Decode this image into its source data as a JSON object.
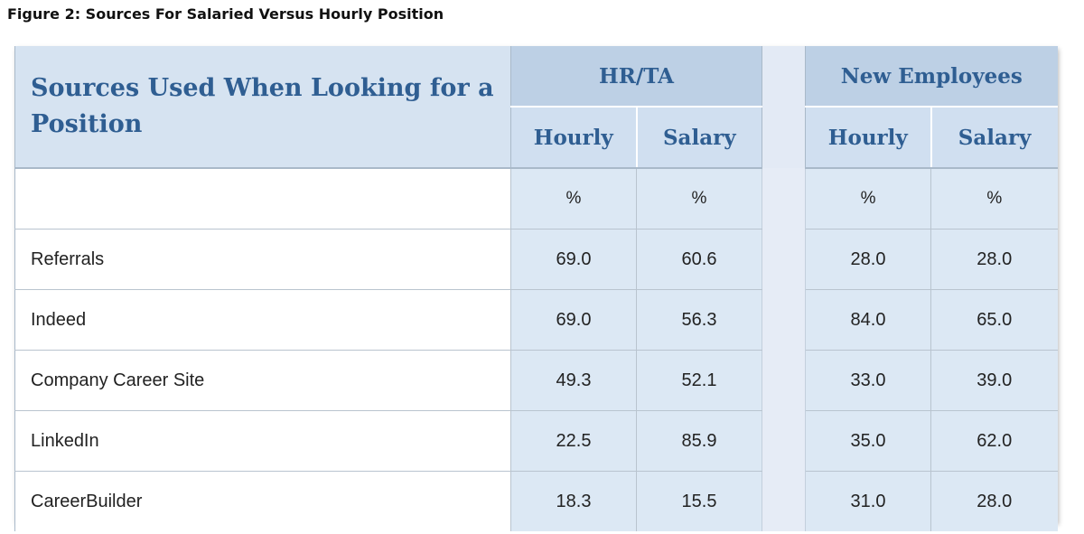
{
  "title": "Figure 2: Sources For Salaried Versus Hourly Position",
  "chart_data": {
    "type": "table",
    "row_header_title": "Sources Used When Looking for a Position",
    "groups": [
      "HR/TA",
      "New Employees"
    ],
    "columns": [
      "Hourly",
      "Salary",
      "Hourly",
      "Salary"
    ],
    "units_row": [
      "%",
      "%",
      "%",
      "%"
    ],
    "rows": [
      {
        "label": "Referrals",
        "values": [
          "69.0",
          "60.6",
          "28.0",
          "28.0"
        ]
      },
      {
        "label": "Indeed",
        "values": [
          "69.0",
          "56.3",
          "84.0",
          "65.0"
        ]
      },
      {
        "label": "Company Career Site",
        "values": [
          "49.3",
          "52.1",
          "33.0",
          "39.0"
        ]
      },
      {
        "label": "LinkedIn",
        "values": [
          "22.5",
          "85.9",
          "35.0",
          "62.0"
        ]
      },
      {
        "label": "CareerBuilder",
        "values": [
          "18.3",
          "15.5",
          "31.0",
          "28.0"
        ]
      }
    ]
  },
  "colors": {
    "heading_blue": "#2f5e92",
    "group_header_bg": "#bdd0e5",
    "subheader_bg": "#d0dff0",
    "value_cell_bg": "#dce8f4"
  }
}
